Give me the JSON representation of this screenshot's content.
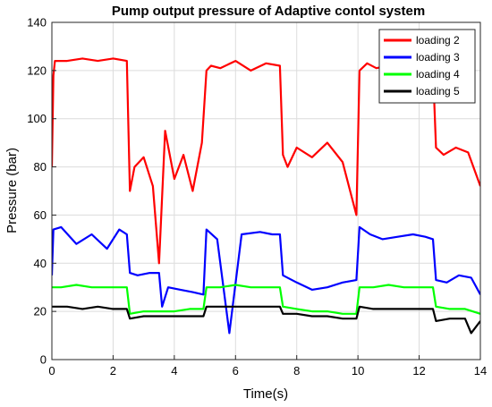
{
  "chart_data": {
    "type": "line",
    "title": "Pump output pressure of Adaptive contol system",
    "xlabel": "Time(s)",
    "ylabel": "Pressure (bar)",
    "xlim": [
      0,
      14
    ],
    "ylim": [
      0,
      140
    ],
    "xticks": [
      0,
      2,
      4,
      6,
      8,
      10,
      12,
      14
    ],
    "yticks": [
      0,
      20,
      40,
      60,
      80,
      100,
      120,
      140
    ],
    "grid": true,
    "legend_position": "top-right",
    "series": [
      {
        "name": "loading 2",
        "color": "#ff0000",
        "x": [
          0,
          0.05,
          0.1,
          0.5,
          1.0,
          1.5,
          2.0,
          2.45,
          2.55,
          2.7,
          3.0,
          3.3,
          3.5,
          3.7,
          4.0,
          4.3,
          4.6,
          4.9,
          5.05,
          5.2,
          5.5,
          6.0,
          6.5,
          7.0,
          7.45,
          7.55,
          7.7,
          8.0,
          8.5,
          9.0,
          9.5,
          9.95,
          10.05,
          10.3,
          10.6,
          11.0,
          11.5,
          12.0,
          12.45,
          12.55,
          12.8,
          13.2,
          13.6,
          14.0
        ],
        "y": [
          80,
          118,
          124,
          124,
          125,
          124,
          125,
          124,
          70,
          80,
          84,
          72,
          40,
          95,
          75,
          85,
          70,
          90,
          120,
          122,
          121,
          124,
          120,
          123,
          122,
          85,
          80,
          88,
          84,
          90,
          82,
          60,
          120,
          123,
          121,
          122,
          120,
          122,
          121,
          88,
          85,
          88,
          86,
          72
        ]
      },
      {
        "name": "loading 3",
        "color": "#0000ff",
        "x": [
          0,
          0.05,
          0.3,
          0.8,
          1.3,
          1.8,
          2.2,
          2.45,
          2.55,
          2.8,
          3.2,
          3.5,
          3.6,
          3.8,
          4.2,
          4.6,
          4.95,
          5.05,
          5.4,
          5.8,
          6.2,
          6.8,
          7.2,
          7.45,
          7.55,
          8.0,
          8.5,
          9.0,
          9.5,
          9.95,
          10.05,
          10.4,
          10.8,
          11.3,
          11.8,
          12.2,
          12.45,
          12.55,
          12.9,
          13.3,
          13.7,
          14.0
        ],
        "y": [
          35,
          54,
          55,
          48,
          52,
          46,
          54,
          52,
          36,
          35,
          36,
          36,
          22,
          30,
          29,
          28,
          27,
          54,
          50,
          11,
          52,
          53,
          52,
          52,
          35,
          32,
          29,
          30,
          32,
          33,
          55,
          52,
          50,
          51,
          52,
          51,
          50,
          33,
          32,
          35,
          34,
          27
        ]
      },
      {
        "name": "loading 4",
        "color": "#00ff00",
        "x": [
          0,
          0.3,
          0.8,
          1.3,
          1.8,
          2.45,
          2.55,
          3.0,
          3.5,
          4.0,
          4.5,
          4.95,
          5.05,
          5.5,
          6.0,
          6.5,
          7.0,
          7.45,
          7.55,
          8.0,
          8.5,
          9.0,
          9.5,
          9.95,
          10.05,
          10.5,
          11.0,
          11.5,
          12.0,
          12.45,
          12.55,
          13.0,
          13.5,
          14.0
        ],
        "y": [
          30,
          30,
          31,
          30,
          30,
          30,
          19,
          20,
          20,
          20,
          21,
          21,
          30,
          30,
          31,
          30,
          30,
          30,
          22,
          21,
          20,
          20,
          19,
          19,
          30,
          30,
          31,
          30,
          30,
          30,
          22,
          21,
          21,
          19
        ]
      },
      {
        "name": "loading 5",
        "color": "#000000",
        "x": [
          0,
          0.5,
          1.0,
          1.5,
          2.0,
          2.45,
          2.55,
          3.0,
          3.5,
          4.0,
          4.5,
          4.95,
          5.05,
          5.5,
          6.0,
          6.5,
          7.0,
          7.45,
          7.55,
          8.0,
          8.5,
          9.0,
          9.5,
          9.95,
          10.05,
          10.5,
          11.0,
          11.5,
          12.0,
          12.45,
          12.55,
          13.0,
          13.5,
          13.7,
          14.0
        ],
        "y": [
          22,
          22,
          21,
          22,
          21,
          21,
          17,
          18,
          18,
          18,
          18,
          18,
          22,
          22,
          22,
          22,
          22,
          22,
          19,
          19,
          18,
          18,
          17,
          17,
          22,
          21,
          21,
          21,
          21,
          21,
          16,
          17,
          17,
          11,
          16
        ]
      }
    ]
  }
}
